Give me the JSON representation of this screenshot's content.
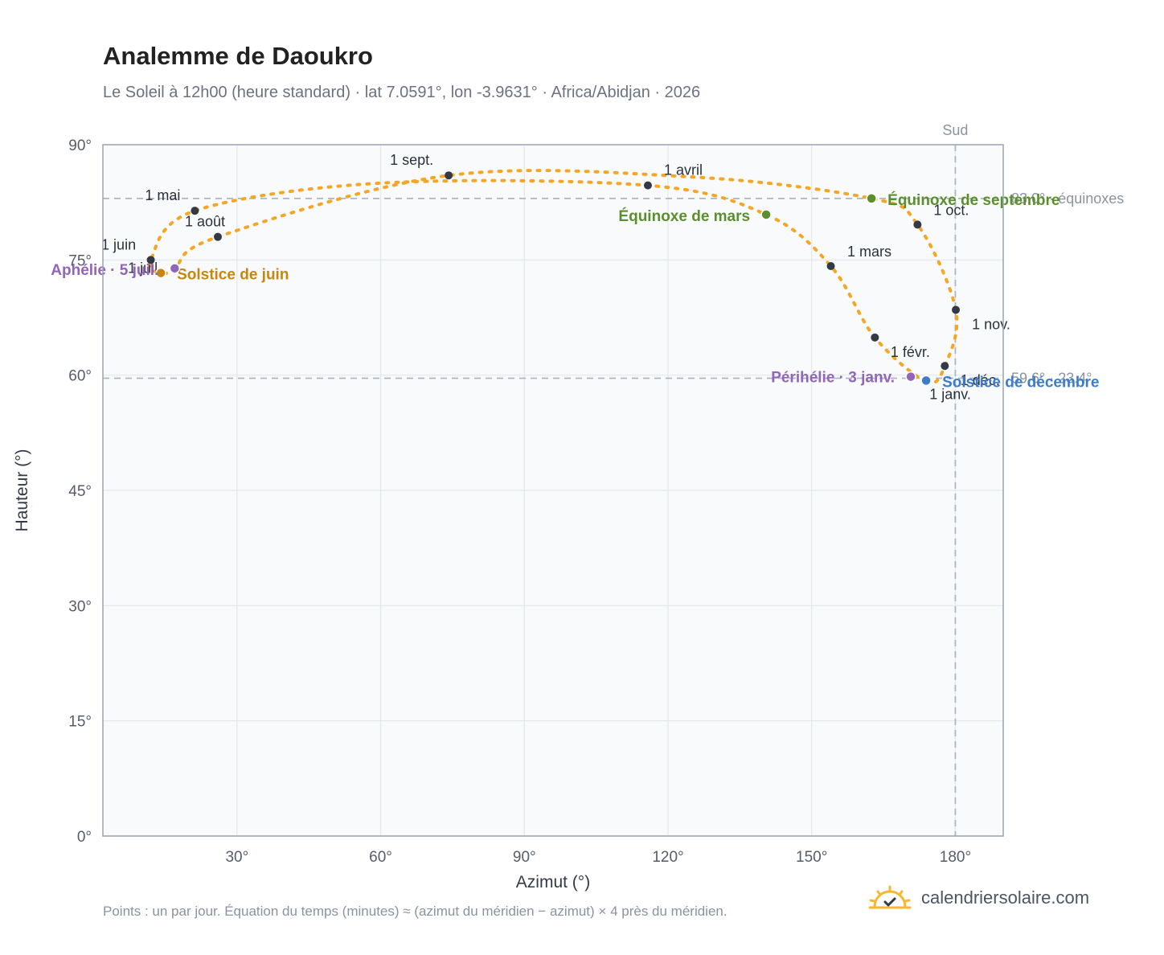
{
  "header": {
    "title": "Analemme de Daoukro",
    "subtitle": "Le Soleil à 12h00 (heure standard) · lat 7.0591°, lon -3.9631° · Africa/Abidjan · 2026"
  },
  "footer": {
    "note": "Points : un par jour. Équation du temps (minutes) ≈ (azimut du méridien − azimut) × 4 près du méridien.",
    "brand": "calendriersolaire.com"
  },
  "colors": {
    "curve": "#f5a623",
    "month_marker": "#333a45",
    "equinox": "#5b8f2e",
    "solstice_june": "#c8860a",
    "solstice_december": "#3d7cc9",
    "apsis": "#9166b8",
    "reference": "#aab8c2",
    "frame": "#9aa5b1"
  },
  "chart_data": {
    "type": "scatter",
    "xlabel": "Azimut (°)",
    "ylabel": "Hauteur (°)",
    "xlim": [
      2,
      190
    ],
    "ylim": [
      0,
      90
    ],
    "x_ticks": [
      30,
      60,
      90,
      120,
      150,
      180
    ],
    "x_tick_labels": [
      "30°",
      "60°",
      "90°",
      "120°",
      "150°",
      "180°"
    ],
    "y_ticks": [
      0,
      15,
      30,
      45,
      60,
      75,
      90
    ],
    "y_tick_labels": [
      "0°",
      "15°",
      "30°",
      "45°",
      "60°",
      "75°",
      "90°"
    ],
    "grid": true,
    "meridian": {
      "azimuth": 180,
      "label": "Sud"
    },
    "reference_lines": [
      {
        "altitude": 83.0,
        "label": "83.0° · équinoxes"
      },
      {
        "altitude": 59.6,
        "label": "59.6° · 23.4°"
      }
    ],
    "month_markers": [
      {
        "label": "1 janv.",
        "az": 173.9,
        "alt": 59.2
      },
      {
        "label": "1 févr.",
        "az": 163.2,
        "alt": 64.9
      },
      {
        "label": "1 mars",
        "az": 154.0,
        "alt": 74.2
      },
      {
        "label": "1 avril",
        "az": 115.8,
        "alt": 84.7
      },
      {
        "label": "1 mai",
        "az": 21.2,
        "alt": 81.4
      },
      {
        "label": "1 juin",
        "az": 12.0,
        "alt": 75.0
      },
      {
        "label": "1 juil.",
        "az": 14.1,
        "alt": 73.3
      },
      {
        "label": "1 août",
        "az": 26.0,
        "alt": 78.0
      },
      {
        "label": "1 sept.",
        "az": 74.2,
        "alt": 86.0
      },
      {
        "label": "1 oct.",
        "az": 172.1,
        "alt": 79.6
      },
      {
        "label": "1 nov.",
        "az": 180.1,
        "alt": 68.5
      },
      {
        "label": "1 déc.",
        "az": 177.8,
        "alt": 61.2
      }
    ],
    "events": [
      {
        "label": "Équinoxe de mars",
        "az": 140.5,
        "alt": 80.9,
        "kind": "equinox"
      },
      {
        "label": "Équinoxe de septembre",
        "az": 162.5,
        "alt": 83.0,
        "kind": "equinox"
      },
      {
        "label": "Solstice de juin",
        "az": 14.1,
        "alt": 73.3,
        "kind": "solstice_june"
      },
      {
        "label": "Solstice de décembre",
        "az": 173.9,
        "alt": 59.3,
        "kind": "solstice_december"
      },
      {
        "label": "Périhélie · 3 janv.",
        "az": 170.7,
        "alt": 59.8,
        "kind": "apsis"
      },
      {
        "label": "Aphélie · 5 juil.",
        "az": 17.0,
        "alt": 73.9,
        "kind": "apsis"
      }
    ],
    "daily_path": [
      [
        173.9,
        59.2
      ],
      [
        163.2,
        64.9
      ],
      [
        154.0,
        74.2
      ],
      [
        140.5,
        80.9
      ],
      [
        115.8,
        84.7
      ],
      [
        60.0,
        85.0
      ],
      [
        21.2,
        81.4
      ],
      [
        12.0,
        75.0
      ],
      [
        14.1,
        73.3
      ],
      [
        17.0,
        73.9
      ],
      [
        26.0,
        78.0
      ],
      [
        74.2,
        86.0
      ],
      [
        125.0,
        85.8
      ],
      [
        162.5,
        83.0
      ],
      [
        172.1,
        79.6
      ],
      [
        180.1,
        68.5
      ],
      [
        177.8,
        61.2
      ]
    ]
  }
}
